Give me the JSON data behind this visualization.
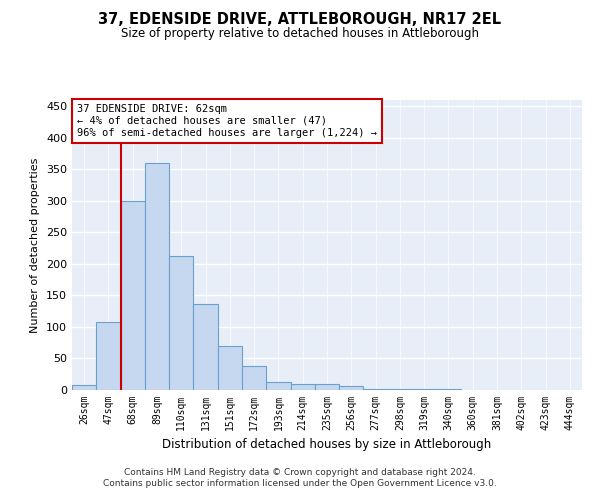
{
  "title": "37, EDENSIDE DRIVE, ATTLEBOROUGH, NR17 2EL",
  "subtitle": "Size of property relative to detached houses in Attleborough",
  "xlabel": "Distribution of detached houses by size in Attleborough",
  "ylabel": "Number of detached properties",
  "bin_labels": [
    "26sqm",
    "47sqm",
    "68sqm",
    "89sqm",
    "110sqm",
    "131sqm",
    "151sqm",
    "172sqm",
    "193sqm",
    "214sqm",
    "235sqm",
    "256sqm",
    "277sqm",
    "298sqm",
    "319sqm",
    "340sqm",
    "360sqm",
    "381sqm",
    "402sqm",
    "423sqm",
    "444sqm"
  ],
  "bar_heights": [
    8,
    108,
    300,
    360,
    213,
    137,
    70,
    38,
    13,
    10,
    9,
    7,
    2,
    1,
    1,
    1,
    0,
    0,
    0,
    0,
    0
  ],
  "bar_color": "#c5d8f0",
  "bar_edge_color": "#6aa0cc",
  "annotation_text": "37 EDENSIDE DRIVE: 62sqm\n← 4% of detached houses are smaller (47)\n96% of semi-detached houses are larger (1,224) →",
  "annotation_box_color": "#ffffff",
  "annotation_box_edge_color": "#cc0000",
  "red_line_color": "#cc0000",
  "red_line_bin": 1.5,
  "ylim": [
    0,
    460
  ],
  "yticks": [
    0,
    50,
    100,
    150,
    200,
    250,
    300,
    350,
    400,
    450
  ],
  "footer_line1": "Contains HM Land Registry data © Crown copyright and database right 2024.",
  "footer_line2": "Contains public sector information licensed under the Open Government Licence v3.0.",
  "background_color": "#e8eef8",
  "grid_color": "#ffffff"
}
